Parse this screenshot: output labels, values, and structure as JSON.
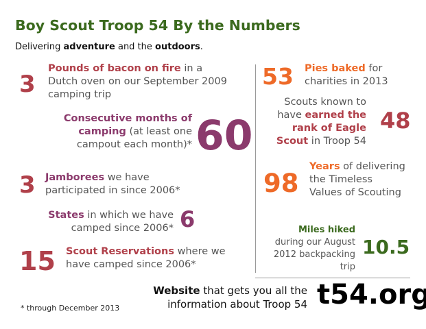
{
  "header": {
    "title": "Boy Scout Troop 54 By the Numbers",
    "subtitle_pre": "Delivering ",
    "subtitle_b1": "adventure",
    "subtitle_mid": " and the ",
    "subtitle_b2": "outdoors",
    "subtitle_post": "."
  },
  "left": [
    {
      "number": "3",
      "bold": "Pounds of bacon on fire",
      "text": " in a Dutch oven on our September 2009 camping trip"
    },
    {
      "number": "60",
      "bold": "Consecutive months of camping",
      "text": " (at least one campout each month)*"
    },
    {
      "number": "3",
      "bold": "Jamborees",
      "text": " we have participated in since 2006*"
    },
    {
      "number": "6",
      "bold": "States",
      "text": " in which we have camped since 2006*"
    },
    {
      "number": "15",
      "bold": "Scout Reservations",
      "text": " where we have camped since 2006*"
    }
  ],
  "right": [
    {
      "number": "53",
      "bold": "Pies baked",
      "text": " for charities in 2013"
    },
    {
      "number": "48",
      "pre": "Scouts known to have ",
      "bold": "earned the rank of Eagle Scout",
      "text": " in Troop 54"
    },
    {
      "number": "98",
      "bold": "Years",
      "text": " of delivering the Timeless Values of Scouting"
    },
    {
      "number": "10.5",
      "bold": "Miles hiked",
      "text": "during our August 2012 backpacking trip"
    }
  ],
  "footer": {
    "footnote": "* through December  2013",
    "website_bold": "Website",
    "website_text": " that gets you all the information about Troop 54",
    "url": "t54.org"
  },
  "colors": {
    "green": "#3b6a1e",
    "red": "#b0404a",
    "purple": "#8b3a6c",
    "orange": "#ee6a28",
    "gray": "#555555"
  }
}
